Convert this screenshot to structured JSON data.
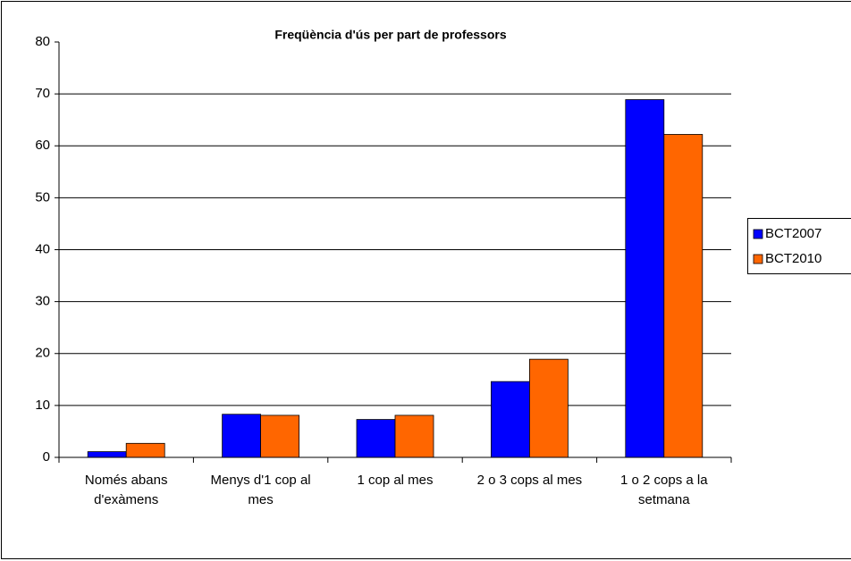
{
  "chart_data": {
    "type": "bar",
    "title": "Freqüència d'ús per part de professors",
    "categories": [
      "Només abans d'exàmens",
      "Menys d'1 cop al mes",
      "1 cop al mes",
      "2 o 3 cops al mes",
      "1 o 2 cops a la setmana"
    ],
    "series": [
      {
        "name": "BCT2007",
        "color": "#0000ff",
        "values": [
          1.1,
          8.3,
          7.3,
          14.6,
          68.9
        ]
      },
      {
        "name": "BCT2010",
        "color": "#ff6600",
        "values": [
          2.7,
          8.1,
          8.1,
          18.9,
          62.2
        ]
      }
    ],
    "ylim": [
      0,
      80
    ],
    "yticks": [
      0,
      10,
      20,
      30,
      40,
      50,
      60,
      70,
      80
    ],
    "grid": true,
    "legend": "right"
  }
}
